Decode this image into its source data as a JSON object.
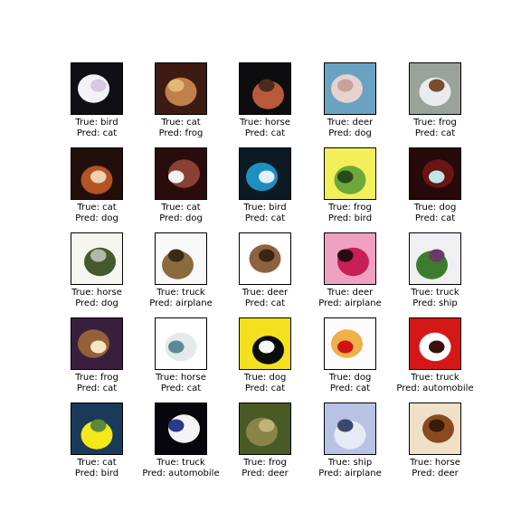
{
  "figure": {
    "true_prefix": "True: ",
    "pred_prefix": "Pred: ",
    "rows": [
      [
        {
          "true": "bird",
          "pred": "cat",
          "image": "bird-photo",
          "colors": [
            "#101014",
            "#f3f3f6",
            "#d7c9de"
          ]
        },
        {
          "true": "cat",
          "pred": "frog",
          "image": "cat-photo",
          "colors": [
            "#3d1b12",
            "#c08049",
            "#e6b677"
          ]
        },
        {
          "true": "horse",
          "pred": "cat",
          "image": "horse-photo",
          "colors": [
            "#0d0d10",
            "#b85a3a",
            "#4a2b1e"
          ]
        },
        {
          "true": "deer",
          "pred": "dog",
          "image": "deer-photo",
          "colors": [
            "#6aa3c2",
            "#e8d2cf",
            "#c7a39a"
          ]
        },
        {
          "true": "frog",
          "pred": "cat",
          "image": "frog-photo",
          "colors": [
            "#9aa39b",
            "#e9ecef",
            "#7a4d2c"
          ]
        }
      ],
      [
        {
          "true": "cat",
          "pred": "dog",
          "image": "cat-photo",
          "colors": [
            "#220f0c",
            "#b25424",
            "#f0d0b0"
          ]
        },
        {
          "true": "cat",
          "pred": "dog",
          "image": "cat-photo",
          "colors": [
            "#2a0c0c",
            "#8a4033",
            "#f2f2f2"
          ]
        },
        {
          "true": "bird",
          "pred": "cat",
          "image": "bird-photo",
          "colors": [
            "#0c1a24",
            "#1e8fbf",
            "#e0f2f6"
          ]
        },
        {
          "true": "frog",
          "pred": "bird",
          "image": "frog-photo",
          "colors": [
            "#f2f05a",
            "#6ea83c",
            "#2a4a18"
          ]
        },
        {
          "true": "dog",
          "pred": "cat",
          "image": "dog-photo",
          "colors": [
            "#260909",
            "#6a1414",
            "#bde6ea"
          ]
        }
      ],
      [
        {
          "true": "horse",
          "pred": "dog",
          "image": "horse-photo",
          "colors": [
            "#f6f6f0",
            "#46582e",
            "#b2b8aa"
          ]
        },
        {
          "true": "truck",
          "pred": "airplane",
          "image": "truck-photo",
          "colors": [
            "#f8f8f8",
            "#8b6a3c",
            "#3a2a18"
          ]
        },
        {
          "true": "deer",
          "pred": "cat",
          "image": "deer-photo",
          "colors": [
            "#ffffff",
            "#8d6240",
            "#3c2412"
          ]
        },
        {
          "true": "deer",
          "pred": "airplane",
          "image": "deer-photo",
          "colors": [
            "#f0a0c0",
            "#c81e56",
            "#2a0a14"
          ]
        },
        {
          "true": "truck",
          "pred": "ship",
          "image": "truck-photo",
          "colors": [
            "#f0f0f4",
            "#3b7d2c",
            "#6a3a6a"
          ]
        }
      ],
      [
        {
          "true": "frog",
          "pred": "cat",
          "image": "frog-photo",
          "colors": [
            "#3a1e3e",
            "#94603a",
            "#f6e6c0"
          ]
        },
        {
          "true": "horse",
          "pred": "cat",
          "image": "horse-photo",
          "colors": [
            "#ffffff",
            "#e4eaea",
            "#5a8a94"
          ]
        },
        {
          "true": "dog",
          "pred": "cat",
          "image": "dog-photo",
          "colors": [
            "#f4e01e",
            "#0c0c0c",
            "#f8f8f4"
          ]
        },
        {
          "true": "dog",
          "pred": "cat",
          "image": "dog-photo",
          "colors": [
            "#fcfcfc",
            "#f0b04a",
            "#d01212"
          ]
        },
        {
          "true": "truck",
          "pred": "automobile",
          "image": "truck-photo",
          "colors": [
            "#d41818",
            "#ffffff",
            "#3a1010"
          ]
        }
      ],
      [
        {
          "true": "cat",
          "pred": "bird",
          "image": "cat-photo",
          "colors": [
            "#1a3a5a",
            "#f2e81a",
            "#5a8a3a"
          ]
        },
        {
          "true": "truck",
          "pred": "automobile",
          "image": "truck-photo",
          "colors": [
            "#06060c",
            "#f4f4f4",
            "#2a3a8a"
          ]
        },
        {
          "true": "frog",
          "pred": "deer",
          "image": "frog-photo",
          "colors": [
            "#4a5a24",
            "#8a8448",
            "#c0b47a"
          ]
        },
        {
          "true": "ship",
          "pred": "airplane",
          "image": "ship-photo",
          "colors": [
            "#b8c2e4",
            "#e6eaf4",
            "#3a4a6a"
          ]
        },
        {
          "true": "horse",
          "pred": "deer",
          "image": "horse-photo",
          "colors": [
            "#f0e0c8",
            "#8a4a20",
            "#3a1a08"
          ]
        }
      ]
    ]
  }
}
